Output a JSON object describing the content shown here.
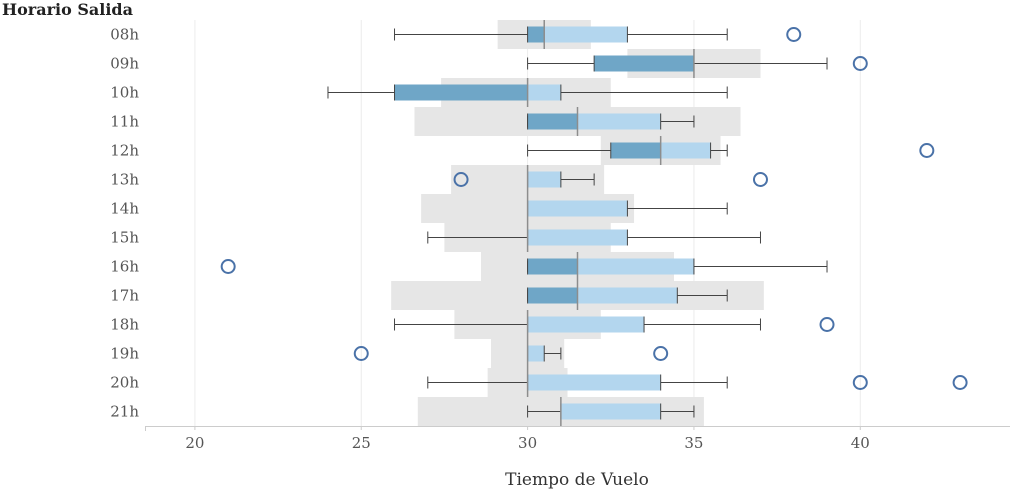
{
  "chart_data": {
    "type": "boxplot",
    "row_header": "Horario Salida",
    "xlabel": "Tiempo de Vuelo",
    "xlim": [
      18.5,
      44.5
    ],
    "xticks": [
      20,
      25,
      30,
      35,
      40
    ],
    "grid": "vertical",
    "colors": {
      "band": "#e6e6e6",
      "box_lower": "#6fa6c7",
      "box_upper": "#b3d6ee",
      "median": "#8d8d8d",
      "whisker": "#444444",
      "outlier": "#4a72a8",
      "grid": "#ececec"
    },
    "rows": [
      {
        "label": "08h",
        "band": [
          29.1,
          31.9
        ],
        "whisker_low": 26,
        "q1": 30,
        "median": 30.5,
        "q3": 33,
        "whisker_high": 36,
        "outliers": [
          38
        ]
      },
      {
        "label": "09h",
        "band": [
          33,
          37
        ],
        "whisker_low": 30,
        "q1": 32,
        "median": 35,
        "q3": 35,
        "whisker_high": 39,
        "outliers": [
          40
        ]
      },
      {
        "label": "10h",
        "band": [
          27.4,
          32.5
        ],
        "whisker_low": 24,
        "q1": 26,
        "median": 30,
        "q3": 31,
        "whisker_high": 36,
        "outliers": []
      },
      {
        "label": "11h",
        "band": [
          26.6,
          36.4
        ],
        "whisker_low": 30,
        "q1": 30,
        "median": 31.5,
        "q3": 34,
        "whisker_high": 35,
        "outliers": []
      },
      {
        "label": "12h",
        "band": [
          32.2,
          35.8
        ],
        "whisker_low": 30,
        "q1": 32.5,
        "median": 34,
        "q3": 35.5,
        "whisker_high": 36,
        "outliers": [
          42
        ]
      },
      {
        "label": "13h",
        "band": [
          27.7,
          32.3
        ],
        "whisker_low": 30,
        "q1": 30,
        "median": 30,
        "q3": 31,
        "whisker_high": 32,
        "outliers": [
          28,
          37
        ]
      },
      {
        "label": "14h",
        "band": [
          26.8,
          33.2
        ],
        "whisker_low": 30,
        "q1": 30,
        "median": 30,
        "q3": 33,
        "whisker_high": 36,
        "outliers": []
      },
      {
        "label": "15h",
        "band": [
          27.5,
          32.5
        ],
        "whisker_low": 27,
        "q1": 30,
        "median": 30,
        "q3": 33,
        "whisker_high": 37,
        "outliers": []
      },
      {
        "label": "16h",
        "band": [
          28.6,
          34.4
        ],
        "whisker_low": 30,
        "q1": 30,
        "median": 31.5,
        "q3": 35,
        "whisker_high": 39,
        "outliers": [
          21
        ]
      },
      {
        "label": "17h",
        "band": [
          25.9,
          37.1
        ],
        "whisker_low": 30,
        "q1": 30,
        "median": 31.5,
        "q3": 34.5,
        "whisker_high": 36,
        "outliers": []
      },
      {
        "label": "18h",
        "band": [
          27.8,
          32.2
        ],
        "whisker_low": 26,
        "q1": 30,
        "median": 30,
        "q3": 33.5,
        "whisker_high": 37,
        "outliers": [
          39
        ]
      },
      {
        "label": "19h",
        "band": [
          28.9,
          31.1
        ],
        "whisker_low": 30,
        "q1": 30,
        "median": 30,
        "q3": 30.5,
        "whisker_high": 31,
        "outliers": [
          25,
          34
        ]
      },
      {
        "label": "20h",
        "band": [
          28.8,
          31.2
        ],
        "whisker_low": 27,
        "q1": 30,
        "median": 30,
        "q3": 34,
        "whisker_high": 36,
        "outliers": [
          40,
          43
        ]
      },
      {
        "label": "21h",
        "band": [
          26.7,
          35.3
        ],
        "whisker_low": 30,
        "q1": 31,
        "median": 31,
        "q3": 34,
        "whisker_high": 35,
        "outliers": []
      }
    ]
  }
}
